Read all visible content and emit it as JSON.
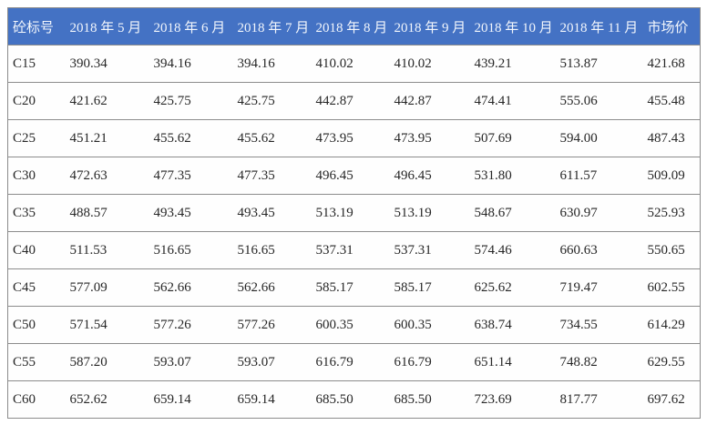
{
  "table": {
    "name": "concrete-grade-monthly-price-table",
    "columns": [
      "砼标号",
      "2018 年 5 月",
      "2018 年 6 月",
      "2018 年 7 月",
      "2018 年 8 月",
      "2018 年 9 月",
      "2018 年 10 月",
      "2018 年 11 月",
      "市场价"
    ],
    "rows": [
      {
        "grade": "C15",
        "values": [
          "390.34",
          "394.16",
          "394.16",
          "410.02",
          "410.02",
          "439.21",
          "513.87",
          "421.68"
        ]
      },
      {
        "grade": "C20",
        "values": [
          "421.62",
          "425.75",
          "425.75",
          "442.87",
          "442.87",
          "474.41",
          "555.06",
          "455.48"
        ]
      },
      {
        "grade": "C25",
        "values": [
          "451.21",
          "455.62",
          "455.62",
          "473.95",
          "473.95",
          "507.69",
          "594.00",
          "487.43"
        ]
      },
      {
        "grade": "C30",
        "values": [
          "472.63",
          "477.35",
          "477.35",
          "496.45",
          "496.45",
          "531.80",
          "611.57",
          "509.09"
        ]
      },
      {
        "grade": "C35",
        "values": [
          "488.57",
          "493.45",
          "493.45",
          "513.19",
          "513.19",
          "548.67",
          "630.97",
          "525.93"
        ]
      },
      {
        "grade": "C40",
        "values": [
          "511.53",
          "516.65",
          "516.65",
          "537.31",
          "537.31",
          "574.46",
          "660.63",
          "550.65"
        ]
      },
      {
        "grade": "C45",
        "values": [
          "577.09",
          "562.66",
          "562.66",
          "585.17",
          "585.17",
          "625.62",
          "719.47",
          "602.55"
        ]
      },
      {
        "grade": "C50",
        "values": [
          "571.54",
          "577.26",
          "577.26",
          "600.35",
          "600.35",
          "638.74",
          "734.55",
          "614.29"
        ]
      },
      {
        "grade": "C55",
        "values": [
          "587.20",
          "593.07",
          "593.07",
          "616.79",
          "616.79",
          "651.14",
          "748.82",
          "629.55"
        ]
      },
      {
        "grade": "C60",
        "values": [
          "652.62",
          "659.14",
          "659.14",
          "685.50",
          "685.50",
          "723.69",
          "817.77",
          "697.62"
        ]
      }
    ]
  },
  "colors": {
    "header_bg": "#4472c4",
    "header_text": "#f2f6fc",
    "border": "#8c8c8c",
    "cell_text": "#262626"
  }
}
